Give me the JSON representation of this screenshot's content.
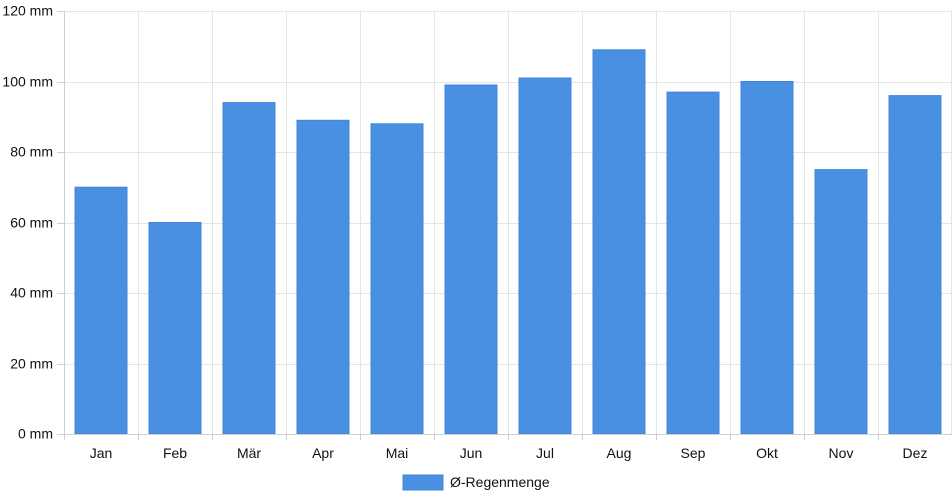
{
  "chart_data": {
    "type": "bar",
    "categories": [
      "Jan",
      "Feb",
      "Mär",
      "Apr",
      "Mai",
      "Jun",
      "Jul",
      "Aug",
      "Sep",
      "Okt",
      "Nov",
      "Dez"
    ],
    "series": [
      {
        "name": "Ø-Regenmenge",
        "values": [
          70,
          60,
          94,
          89,
          88,
          99,
          101,
          109,
          97,
          100,
          75,
          96
        ],
        "color": "#4a90e2"
      }
    ],
    "ylim": [
      0,
      120
    ],
    "yticks": [
      0,
      20,
      40,
      60,
      80,
      100,
      120
    ],
    "ytick_labels": [
      "0 mm",
      "20 mm",
      "40 mm",
      "60 mm",
      "80 mm",
      "100 mm",
      "120 mm"
    ],
    "grid": true,
    "legend_position": "bottom-center"
  }
}
